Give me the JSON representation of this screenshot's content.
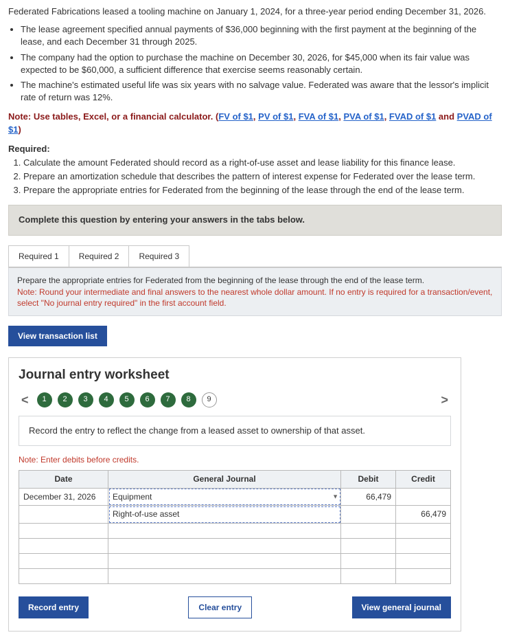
{
  "intro": "Federated Fabrications leased a tooling machine on January 1, 2024, for a three-year period ending December 31, 2026.",
  "bullets": [
    "The lease agreement specified annual payments of $36,000 beginning with the first payment at the beginning of the lease, and each December 31 through 2025.",
    "The company had the option to purchase the machine on December 30, 2026, for $45,000 when its fair value was expected to be $60,000, a sufficient difference that exercise seems reasonably certain.",
    "The machine's estimated useful life was six years with no salvage value. Federated was aware that the lessor's implicit rate of return was 12%."
  ],
  "noteRed": {
    "prefix": "Note: Use tables, Excel, or a financial calculator. (",
    "links": [
      "FV of $1",
      "PV of $1",
      "FVA of $1",
      "PVA of $1",
      "FVAD of $1",
      "PVAD of $1"
    ],
    "seps": [
      ", ",
      ", ",
      ", ",
      ", ",
      " and "
    ],
    "suffix": ")"
  },
  "requiredLabel": "Required:",
  "requiredItems": [
    "Calculate the amount Federated should record as a right-of-use asset and lease liability for this finance lease.",
    "Prepare an amortization schedule that describes the pattern of interest expense for Federated over the lease term.",
    "Prepare the appropriate entries for Federated from the beginning of the lease through the end of the lease term."
  ],
  "grayBanner": "Complete this question by entering your answers in the tabs below.",
  "tabs": [
    "Required 1",
    "Required 2",
    "Required 3"
  ],
  "banner2": {
    "line1": "Prepare the appropriate entries for Federated from the beginning of the lease through the end of the lease term.",
    "line2": "Note: Round your intermediate and final answers to the nearest whole dollar amount. If no entry is required for a transaction/event, select \"No journal entry required\" in the first account field."
  },
  "viewTx": "View transaction list",
  "ws": {
    "title": "Journal entry worksheet",
    "steps": [
      "1",
      "2",
      "3",
      "4",
      "5",
      "6",
      "7",
      "8",
      "9"
    ],
    "currentStep": 9,
    "instr": "Record the entry to reflect the change from a leased asset to ownership of that asset.",
    "noteDebits": "Note: Enter debits before credits.",
    "headers": {
      "date": "Date",
      "gj": "General Journal",
      "debit": "Debit",
      "credit": "Credit"
    },
    "rows": [
      {
        "date": "December 31, 2026",
        "gj": "Equipment",
        "debit": "66,479",
        "credit": "",
        "dashed": true,
        "dd": true
      },
      {
        "date": "",
        "gj": "Right-of-use asset",
        "debit": "",
        "credit": "66,479",
        "dashed": true,
        "dd": false
      },
      {
        "date": "",
        "gj": "",
        "debit": "",
        "credit": "",
        "dashed": false,
        "dd": false
      },
      {
        "date": "",
        "gj": "",
        "debit": "",
        "credit": "",
        "dashed": false,
        "dd": false
      },
      {
        "date": "",
        "gj": "",
        "debit": "",
        "credit": "",
        "dashed": false,
        "dd": false
      },
      {
        "date": "",
        "gj": "",
        "debit": "",
        "credit": "",
        "dashed": false,
        "dd": false
      }
    ],
    "buttons": {
      "record": "Record entry",
      "clear": "Clear entry",
      "viewGJ": "View general journal"
    }
  }
}
